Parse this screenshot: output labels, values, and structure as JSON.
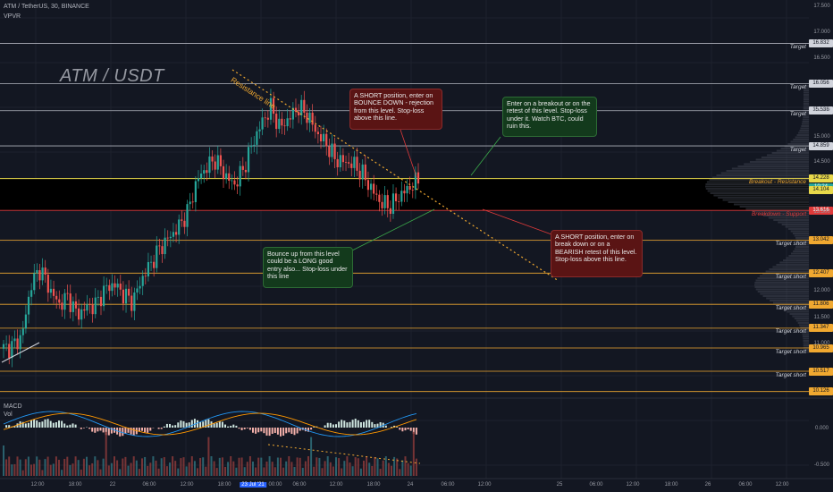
{
  "header": {
    "symbol_line": "ATM / TetherUS, 30, BINANCE",
    "indicator": "VPVR",
    "watermark": "ATM / USDT",
    "macd_label": "MACD",
    "vol_label": "Vol"
  },
  "annotations": {
    "resistance_line": "Resistance line",
    "short_bounce": "A SHORT position, enter on BOUNCE DOWN - rejection from this level. Stop-loss above this line.",
    "long_breakout": "Enter on a breakout or on the retest of this level. Stop-loss under it. Watch BTC, could ruin this.",
    "bounce_long": "Bounce up from this level could be a LONG good entry also... Stop-loss under this line",
    "short_breakdown": "A SHORT position, enter on break down or on a BEARISH retest of this level. Stop-loss above this line."
  },
  "levels": [
    {
      "label": "Target",
      "price": "16.832",
      "value": 16.832,
      "color": "#b2b5be"
    },
    {
      "label": "Target",
      "price": "16.056",
      "value": 16.056,
      "color": "#b2b5be"
    },
    {
      "label": "Target",
      "price": "15.536",
      "value": 15.536,
      "color": "#b2b5be"
    },
    {
      "label": "Target",
      "price": "14.859",
      "value": 14.859,
      "color": "#b2b5be"
    },
    {
      "label": "Breakout - Resistance",
      "price": "14.228",
      "value": 14.228,
      "color": "#e8d84a"
    },
    {
      "label": "Breakdown - Support",
      "price": "13.616",
      "value": 13.616,
      "color": "#e03a3a"
    },
    {
      "label": "Target short",
      "price": "13.042",
      "value": 13.042,
      "color": "#f0a830"
    },
    {
      "label": "Target short",
      "price": "12.407",
      "value": 12.407,
      "color": "#f0a830"
    },
    {
      "label": "Target short",
      "price": "11.806",
      "value": 11.806,
      "color": "#f0a830"
    },
    {
      "label": "Target short",
      "price": "11.347",
      "value": 11.347,
      "color": "#f0a830"
    },
    {
      "label": "Target short",
      "price": "10.965",
      "value": 10.965,
      "color": "#f0a830"
    },
    {
      "label": "Target short",
      "price": "10.517",
      "value": 10.517,
      "color": "#f0a830"
    },
    {
      "label": "",
      "price": "10.126",
      "value": 10.126,
      "color": "#f0a830"
    }
  ],
  "price_tags_extra": [
    {
      "text": "14.228",
      "sub": "10:24",
      "color": "#26a69a"
    },
    {
      "text": "14.104",
      "color": "#e8d84a"
    }
  ],
  "y_axis_ticks": [
    "17.500",
    "17.000",
    "16.500",
    "15.500",
    "15.000",
    "14.500",
    "13.500",
    "12.000",
    "11.500",
    "11.000",
    "0.000",
    "-0.500"
  ],
  "x_axis_ticks": [
    "12:00",
    "18:00",
    "22",
    "06:00",
    "12:00",
    "18:00",
    "23 Jul '21",
    "00:00",
    "06:00",
    "12:00",
    "18:00",
    "24",
    "06:00",
    "12:00",
    "25",
    "06:00",
    "12:00",
    "18:00",
    "26",
    "06:00",
    "12:00"
  ],
  "chart_data": {
    "type": "candlestick",
    "title": "ATM / TetherUS, 30, BINANCE",
    "ylim": [
      10.0,
      17.6
    ],
    "colors": {
      "up": "#26a69a",
      "down": "#ef5350"
    },
    "close_path_approx": [
      10.95,
      11.0,
      11.2,
      12.2,
      12.5,
      12.1,
      11.8,
      11.95,
      11.6,
      11.75,
      11.8,
      12.1,
      12.2,
      12.0,
      11.85,
      12.3,
      12.6,
      12.9,
      13.1,
      13.3,
      13.6,
      14.2,
      14.45,
      14.6,
      14.3,
      14.1,
      14.4,
      14.9,
      15.3,
      15.6,
      15.2,
      15.4,
      15.6,
      15.45,
      15.1,
      14.9,
      14.6,
      14.55,
      14.5,
      14.3,
      14.0,
      13.75,
      13.7,
      13.9,
      14.05,
      14.2
    ]
  }
}
